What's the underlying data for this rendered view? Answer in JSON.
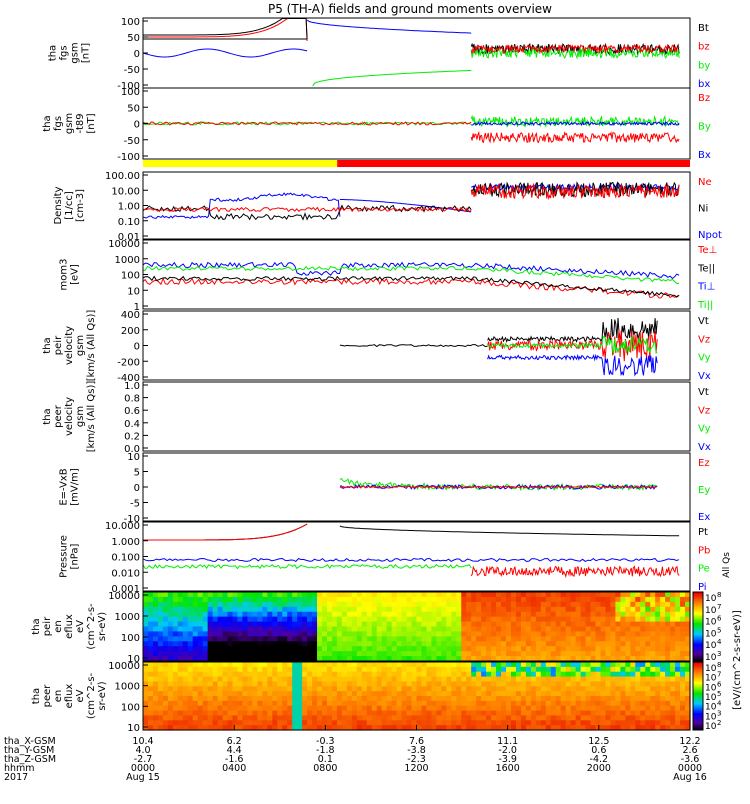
{
  "title": "P5 (TH-A) fields and ground moments overview",
  "colors": {
    "black": "#000000",
    "red": "#ff0000",
    "green": "#00ee00",
    "blue": "#0000ff",
    "yellow": "#ffff00"
  },
  "chart_data": [
    {
      "type": "line",
      "ylabel": [
        "tha",
        "fgs",
        "gsm",
        "[nT]"
      ],
      "yticks": [
        "100",
        "50",
        "0",
        "-50",
        "-100"
      ],
      "ylim": [
        -100,
        100
      ],
      "legend": [
        {
          "label": "Bt",
          "color": "#000000"
        },
        {
          "label": "bz",
          "color": "#ff0000"
        },
        {
          "label": "by",
          "color": "#00ee00"
        },
        {
          "label": "bx",
          "color": "#0000ff"
        }
      ]
    },
    {
      "type": "line",
      "ylabel": [
        "tha",
        "fgs",
        "gsm",
        "-t89",
        "[nT]"
      ],
      "yticks": [
        "100",
        "50",
        "0",
        "-50",
        "-100"
      ],
      "ylim": [
        -125,
        125
      ],
      "legend": [
        {
          "label": "Bz",
          "color": "#ff0000"
        },
        {
          "label": "By",
          "color": "#00ee00"
        },
        {
          "label": "Bx",
          "color": "#0000ff"
        }
      ]
    },
    {
      "type": "line",
      "ylabel": [
        "Density",
        "[1/cc]",
        "[cm-3]"
      ],
      "yticks": [
        "100.00",
        "10.00",
        "1.00",
        "0.10",
        "0.01"
      ],
      "log": true,
      "legend": [
        {
          "label": "Ne",
          "color": "#ff0000"
        },
        {
          "label": "Ni",
          "color": "#000000"
        },
        {
          "label": "Npot",
          "color": "#0000ff"
        }
      ]
    },
    {
      "type": "line",
      "ylabel": [
        "mom3",
        "[eV]"
      ],
      "yticks": [
        "10000",
        "1000",
        "100",
        "10",
        "1"
      ],
      "log": true,
      "legend": [
        {
          "label": "Te⊥",
          "color": "#ff0000"
        },
        {
          "label": "Te||",
          "color": "#000000"
        },
        {
          "label": "Ti⊥",
          "color": "#0000ff"
        },
        {
          "label": "Ti||",
          "color": "#00ee00"
        }
      ]
    },
    {
      "type": "line",
      "ylabel": [
        "tha",
        "peir",
        "velocity",
        "gsm",
        "[km/s (All Qs)]"
      ],
      "yticks": [
        "400",
        "200",
        "0",
        "-200",
        "-400"
      ],
      "ylim": [
        -400,
        400
      ],
      "legend": [
        {
          "label": "Vt",
          "color": "#000000"
        },
        {
          "label": "Vz",
          "color": "#ff0000"
        },
        {
          "label": "Vy",
          "color": "#00ee00"
        },
        {
          "label": "Vx",
          "color": "#0000ff"
        }
      ]
    },
    {
      "type": "line",
      "ylabel": [
        "tha",
        "peer",
        "velocity",
        "gsm",
        "[km/s (All Qs)]"
      ],
      "yticks": [
        "1.0",
        "0.8",
        "0.6",
        "0.4",
        "0.2",
        "0.0"
      ],
      "ylim": [
        0,
        1
      ],
      "legend": [
        {
          "label": "Vt",
          "color": "#000000"
        },
        {
          "label": "Vz",
          "color": "#ff0000"
        },
        {
          "label": "Vy",
          "color": "#00ee00"
        },
        {
          "label": "Vx",
          "color": "#0000ff"
        }
      ]
    },
    {
      "type": "line",
      "ylabel": [
        "E=-VxB",
        "[mV/m]"
      ],
      "yticks": [
        "10",
        "5",
        "0",
        "-5",
        "-10"
      ],
      "ylim": [
        -12,
        12
      ],
      "legend": [
        {
          "label": "Ez",
          "color": "#ff0000"
        },
        {
          "label": "Ey",
          "color": "#00ee00"
        },
        {
          "label": "Ex",
          "color": "#0000ff"
        }
      ]
    },
    {
      "type": "line",
      "ylabel": [
        "Pressure",
        "[nPa]"
      ],
      "yticks": [
        "10.000",
        "1.000",
        "0.100",
        "0.010",
        "0.001"
      ],
      "log": true,
      "legend": [
        {
          "label": "Pt",
          "color": "#000000"
        },
        {
          "label": "Pb",
          "color": "#ff0000"
        },
        {
          "label": "Pe",
          "color": "#00ee00"
        },
        {
          "label": "Pi",
          "color": "#0000ff"
        }
      ]
    },
    {
      "type": "heatmap",
      "ylabel": [
        "tha",
        "peir",
        "en",
        "eflux",
        "eV",
        "(cm^2-s-",
        "sr-eV)"
      ],
      "yticks": [
        "10000",
        "1000",
        "100",
        "10"
      ],
      "log": true
    },
    {
      "type": "heatmap",
      "ylabel": [
        "tha",
        "peer",
        "en",
        "eflux",
        "eV",
        "(cm^2-s-",
        "sr-eV)"
      ],
      "yticks": [
        "10000",
        "1000",
        "100",
        "10"
      ],
      "log": true
    }
  ],
  "colorbar": {
    "label": "[eV/(cm^2-s-sr-eV)]",
    "sublabel": "All Qs",
    "base": "10",
    "exponents_top": [
      "8",
      "7",
      "6",
      "5",
      "4",
      "3"
    ],
    "exponents_bottom": [
      "8",
      "7",
      "6",
      "5",
      "4",
      "3",
      "2"
    ]
  },
  "xaxis": {
    "row_labels": [
      "tha_X-GSM",
      "tha_Y-GSM",
      "tha_Z-GSM",
      "hhmm",
      "2017"
    ],
    "ticks": [
      {
        "values": [
          "10.4",
          "4.0",
          "-2.7",
          "0000",
          "Aug 15"
        ]
      },
      {
        "values": [
          "6.2",
          "4.4",
          "-1.6",
          "0400",
          ""
        ]
      },
      {
        "values": [
          "-0.3",
          "-1.8",
          "0.1",
          "0800",
          ""
        ]
      },
      {
        "values": [
          "7.6",
          "-3.8",
          "-2.3",
          "1200",
          ""
        ]
      },
      {
        "values": [
          "11.1",
          "-2.0",
          "-3.9",
          "1600",
          ""
        ]
      },
      {
        "values": [
          "12.5",
          "0.6",
          "-4.2",
          "2000",
          ""
        ]
      },
      {
        "values": [
          "12.2",
          "2.6",
          "-3.6",
          "0000",
          "Aug 16"
        ]
      }
    ]
  }
}
